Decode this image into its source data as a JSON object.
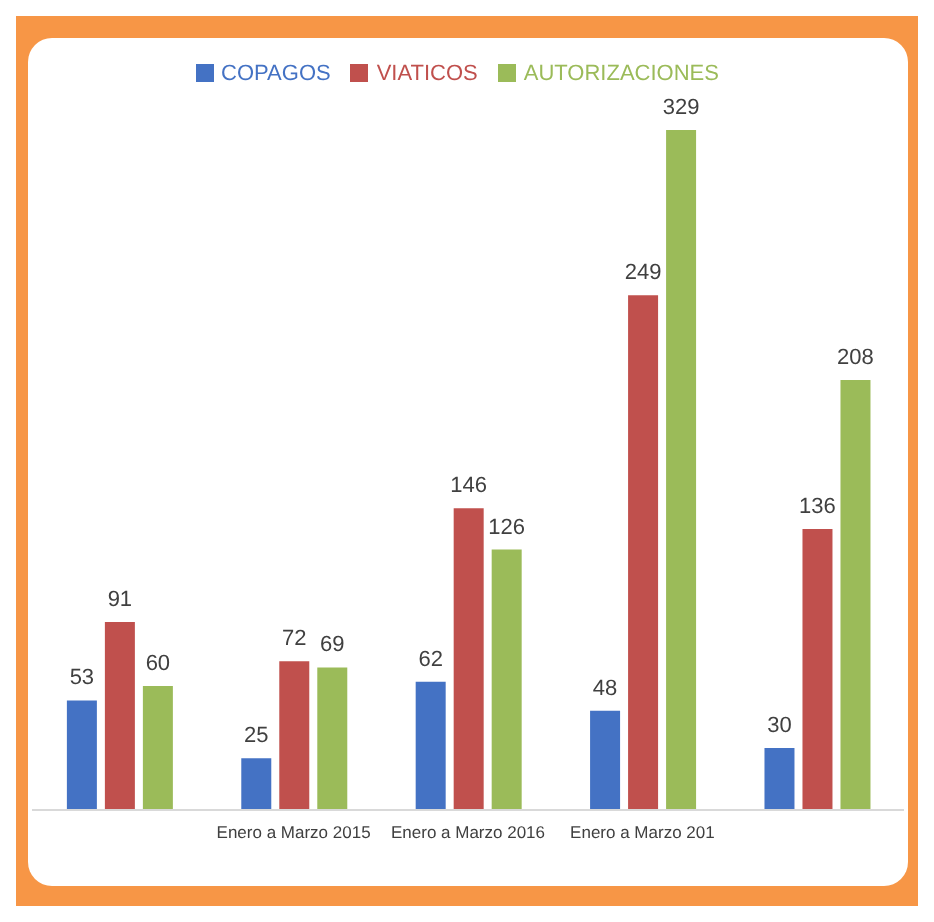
{
  "chart_data": {
    "type": "bar",
    "categories": [
      null,
      "Enero a Marzo 2015",
      "Enero a Marzo 2016",
      "Enero a Marzo 201",
      null
    ],
    "series": [
      {
        "name": "COPAGOS",
        "color": "#4472c4",
        "values": [
          53,
          25,
          62,
          48,
          30
        ]
      },
      {
        "name": "VIATICOS",
        "color": "#c0504d",
        "values": [
          91,
          72,
          146,
          249,
          136
        ]
      },
      {
        "name": "AUTORIZACIONES",
        "color": "#9bbb59",
        "values": [
          60,
          69,
          126,
          329,
          208
        ]
      }
    ],
    "data_labels": true,
    "legend": "top",
    "grid": false
  }
}
